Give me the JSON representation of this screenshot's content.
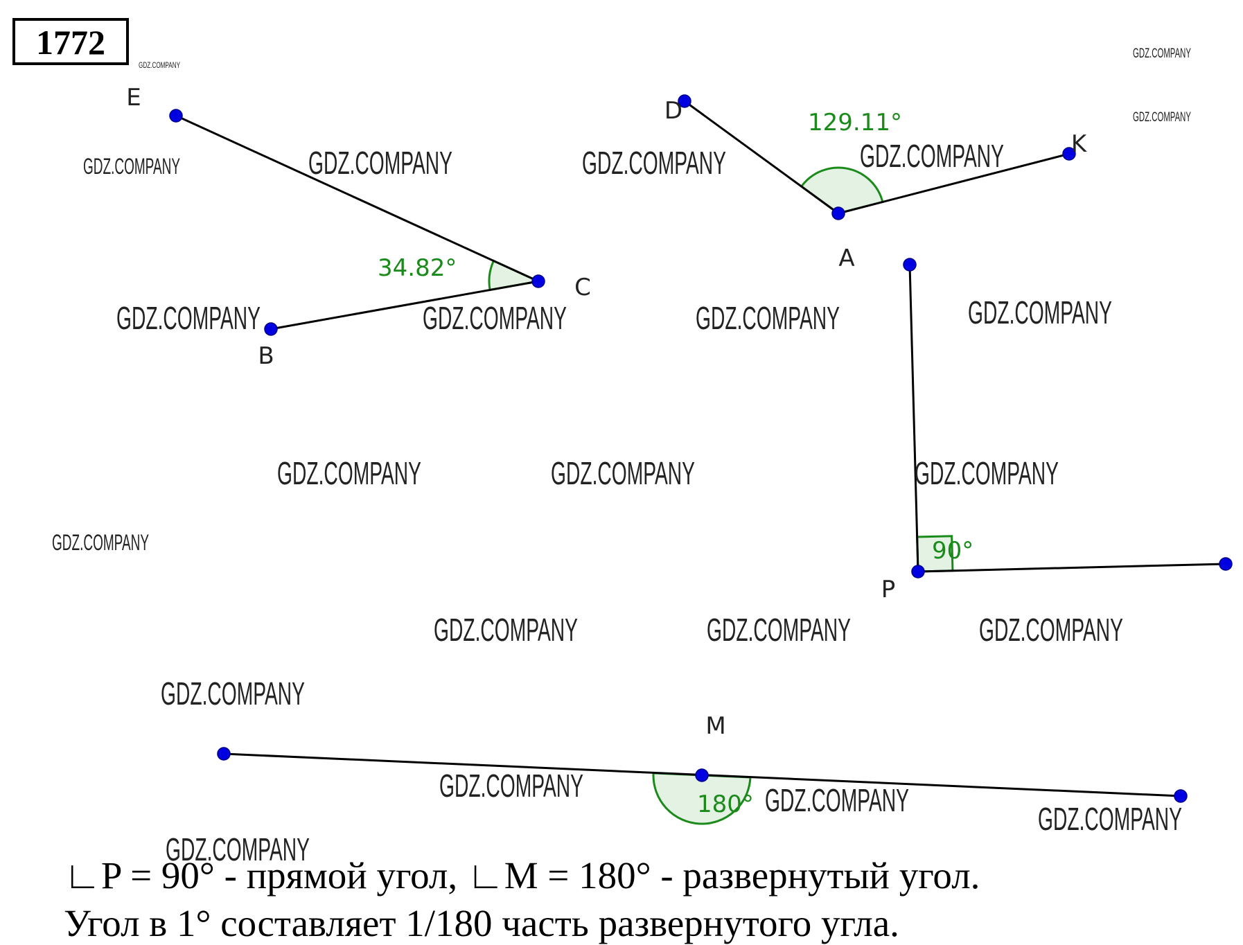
{
  "problem_number": "1772",
  "points": [
    {
      "label": "E"
    },
    {
      "label": "C"
    },
    {
      "label": "B"
    },
    {
      "label": "D"
    },
    {
      "label": "A"
    },
    {
      "label": "K"
    },
    {
      "label": "P"
    },
    {
      "label": "M"
    }
  ],
  "angles": [
    "34.82°",
    "129.11°",
    "90°",
    "180°"
  ],
  "text_lines": [
    "∟P = 90° - прямой угол, ∟M = 180° - развернутый угол.",
    "Угол в 1° составляет 1/180 часть развернутого угла."
  ],
  "watermarks": [
    "GDZ.COMPANY",
    "GDZ.COMPANY",
    "GDZ.COMPANY",
    "GDZ.COMPANY",
    "GDZ.COMPANY",
    "GDZ.COMPANY",
    "GDZ.COMPANY",
    "GDZ.COMPANY",
    "GDZ.COMPANY",
    "GDZ.COMPANY",
    "GDZ.COMPANY",
    "GDZ.COMPANY",
    "GDZ.COMPANY",
    "GDZ.COMPANY",
    "GDZ.COMPANY",
    "GDZ.COMPANY",
    "GDZ.COMPANY",
    "GDZ.COMPANY",
    "GDZ.COMPANY",
    "GDZ.COMPANY",
    "GDZ.COMPANY",
    "GDZ.COMPANY",
    "GDZ.COMPANY"
  ]
}
